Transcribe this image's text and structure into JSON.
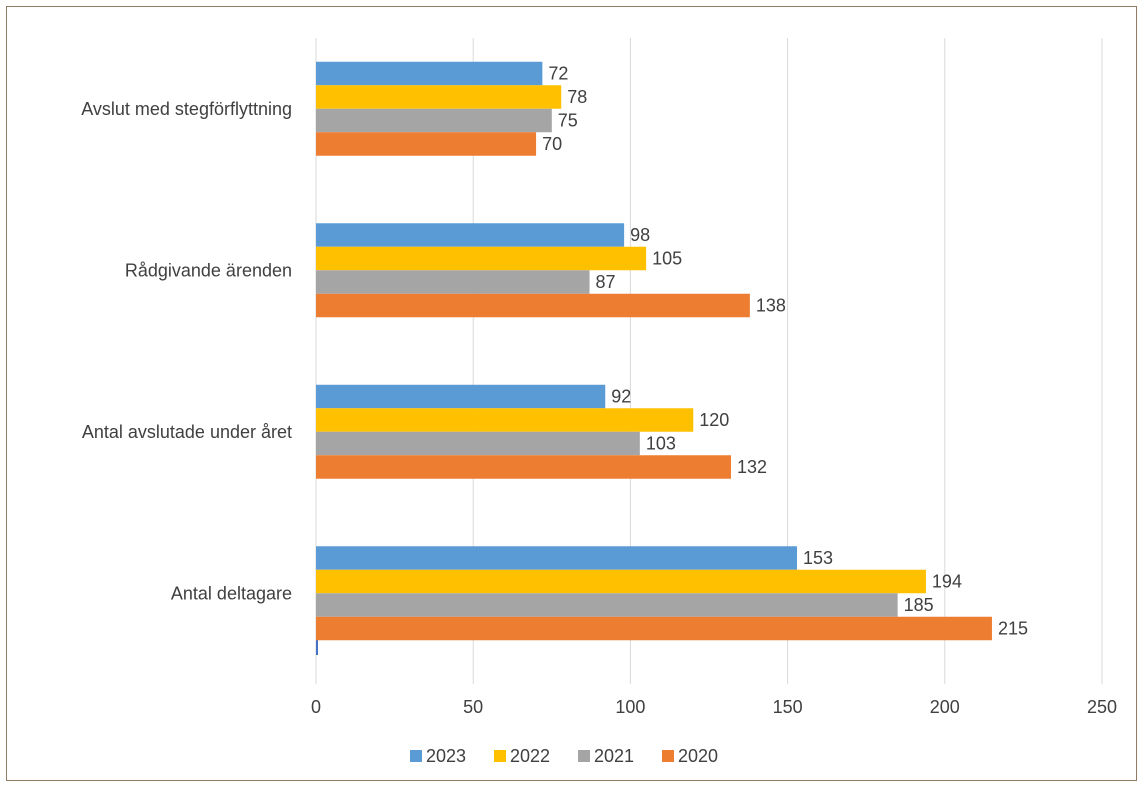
{
  "chart_data": {
    "type": "bar",
    "orientation": "horizontal",
    "categories": [
      "Antal deltagare",
      "Antal avslutade under året",
      "Rådgivande ärenden",
      "Avslut med stegförflyttning"
    ],
    "series": [
      {
        "name": "2023",
        "color": "#5b9bd5",
        "values": [
          153,
          92,
          98,
          72
        ]
      },
      {
        "name": "2022",
        "color": "#ffc000",
        "values": [
          194,
          120,
          105,
          78
        ]
      },
      {
        "name": "2021",
        "color": "#a5a5a5",
        "values": [
          185,
          103,
          87,
          75
        ]
      },
      {
        "name": "2020",
        "color": "#ed7d31",
        "values": [
          215,
          132,
          138,
          70
        ]
      }
    ],
    "xlim": [
      0,
      250
    ],
    "xticks": [
      0,
      50,
      100,
      150,
      200,
      250
    ],
    "grid": true,
    "legend": "bottom",
    "data_labels": true,
    "title": "",
    "xlabel": "",
    "ylabel": ""
  }
}
